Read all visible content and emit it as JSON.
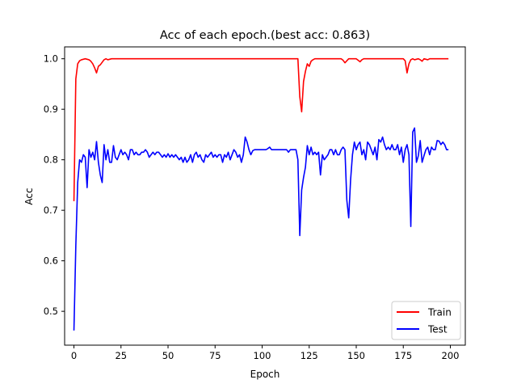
{
  "chart_data": {
    "type": "line",
    "title": "Acc of each epoch.(best acc: 0.863)",
    "xlabel": "Epoch",
    "ylabel": "Acc",
    "xlim": [
      -4.95,
      207.95
    ],
    "ylim": [
      0.433,
      1.0235
    ],
    "xticks": [
      0,
      25,
      50,
      75,
      100,
      125,
      150,
      175,
      200
    ],
    "yticks": [
      0.5,
      0.6,
      0.7,
      0.8,
      0.9,
      1.0
    ],
    "ytick_labels": [
      "0.5",
      "0.6",
      "0.7",
      "0.8",
      "0.9",
      "1.0"
    ],
    "grid": false,
    "legend_position": "lower-right",
    "series": [
      {
        "name": "Train",
        "color": "#ff0000",
        "x": [
          0,
          1,
          2,
          3,
          4,
          5,
          6,
          7,
          8,
          9,
          10,
          11,
          12,
          13,
          14,
          15,
          16,
          17,
          18,
          19,
          20,
          25,
          50,
          75,
          100,
          110,
          118,
          119,
          120,
          121,
          122,
          123,
          124,
          125,
          126,
          127,
          128,
          130,
          135,
          140,
          141,
          142,
          143,
          144,
          145,
          146,
          147,
          148,
          149,
          150,
          151,
          152,
          153,
          154,
          155,
          160,
          165,
          170,
          171,
          172,
          173,
          174,
          175,
          176,
          177,
          178,
          179,
          180,
          181,
          182,
          183,
          184,
          185,
          186,
          187,
          188,
          189,
          190,
          191,
          192,
          193,
          194,
          195,
          196,
          197,
          198,
          199
        ],
        "values": [
          0.718,
          0.96,
          0.99,
          0.996,
          0.998,
          0.999,
          1.0,
          0.999,
          0.998,
          0.995,
          0.99,
          0.982,
          0.972,
          0.985,
          0.988,
          0.993,
          0.998,
          1.0,
          0.998,
          0.999,
          1.0,
          1.0,
          1.0,
          1.0,
          1.0,
          1.0,
          1.0,
          1.0,
          0.925,
          0.895,
          0.955,
          0.975,
          0.99,
          0.985,
          0.995,
          0.998,
          1.0,
          1.0,
          1.0,
          1.0,
          1.0,
          1.0,
          0.997,
          0.992,
          0.996,
          1.0,
          1.0,
          1.0,
          1.0,
          1.0,
          0.997,
          0.994,
          0.998,
          1.0,
          1.0,
          1.0,
          1.0,
          1.0,
          1.0,
          1.0,
          1.0,
          1.0,
          1.0,
          0.996,
          0.972,
          0.99,
          0.998,
          1.0,
          0.998,
          0.999,
          1.0,
          0.998,
          0.995,
          1.0,
          0.999,
          0.998,
          1.0,
          1.0,
          1.0,
          1.0,
          1.0,
          1.0,
          1.0,
          1.0,
          1.0,
          1.0,
          1.0
        ]
      },
      {
        "name": "Test",
        "color": "#0000ff",
        "x": [
          0,
          1,
          2,
          3,
          4,
          5,
          6,
          7,
          8,
          9,
          10,
          11,
          12,
          13,
          14,
          15,
          16,
          17,
          18,
          19,
          20,
          21,
          22,
          23,
          24,
          25,
          26,
          27,
          28,
          29,
          30,
          31,
          32,
          33,
          34,
          35,
          36,
          37,
          38,
          39,
          40,
          41,
          42,
          43,
          44,
          45,
          46,
          47,
          48,
          49,
          50,
          51,
          52,
          53,
          54,
          55,
          56,
          57,
          58,
          59,
          60,
          61,
          62,
          63,
          64,
          65,
          66,
          67,
          68,
          69,
          70,
          71,
          72,
          73,
          74,
          75,
          76,
          77,
          78,
          79,
          80,
          81,
          82,
          83,
          84,
          85,
          86,
          87,
          88,
          89,
          90,
          91,
          92,
          93,
          94,
          95,
          96,
          97,
          98,
          99,
          100,
          101,
          102,
          103,
          104,
          105,
          106,
          107,
          108,
          109,
          110,
          111,
          112,
          113,
          114,
          115,
          116,
          117,
          118,
          119,
          120,
          121,
          122,
          123,
          124,
          125,
          126,
          127,
          128,
          129,
          130,
          131,
          132,
          133,
          134,
          135,
          136,
          137,
          138,
          139,
          140,
          141,
          142,
          143,
          144,
          145,
          146,
          147,
          148,
          149,
          150,
          151,
          152,
          153,
          154,
          155,
          156,
          157,
          158,
          159,
          160,
          161,
          162,
          163,
          164,
          165,
          166,
          167,
          168,
          169,
          170,
          171,
          172,
          173,
          174,
          175,
          176,
          177,
          178,
          179,
          180,
          181,
          182,
          183,
          184,
          185,
          186,
          187,
          188,
          189,
          190,
          191,
          192,
          193,
          194,
          195,
          196,
          197,
          198,
          199
        ],
        "values": [
          0.462,
          0.63,
          0.755,
          0.8,
          0.795,
          0.81,
          0.805,
          0.745,
          0.82,
          0.805,
          0.815,
          0.8,
          0.836,
          0.795,
          0.77,
          0.755,
          0.83,
          0.8,
          0.82,
          0.795,
          0.795,
          0.828,
          0.805,
          0.8,
          0.81,
          0.82,
          0.81,
          0.815,
          0.81,
          0.8,
          0.82,
          0.82,
          0.81,
          0.815,
          0.81,
          0.81,
          0.815,
          0.815,
          0.82,
          0.815,
          0.805,
          0.81,
          0.815,
          0.81,
          0.815,
          0.815,
          0.81,
          0.805,
          0.81,
          0.805,
          0.812,
          0.805,
          0.81,
          0.805,
          0.81,
          0.805,
          0.8,
          0.805,
          0.795,
          0.805,
          0.795,
          0.8,
          0.81,
          0.795,
          0.81,
          0.815,
          0.805,
          0.81,
          0.8,
          0.795,
          0.81,
          0.805,
          0.81,
          0.815,
          0.805,
          0.81,
          0.805,
          0.81,
          0.81,
          0.795,
          0.81,
          0.805,
          0.815,
          0.8,
          0.81,
          0.82,
          0.815,
          0.805,
          0.81,
          0.795,
          0.81,
          0.845,
          0.835,
          0.82,
          0.81,
          0.818,
          0.82,
          0.82,
          0.82,
          0.82,
          0.82,
          0.82,
          0.82,
          0.822,
          0.825,
          0.82,
          0.82,
          0.82,
          0.82,
          0.82,
          0.82,
          0.82,
          0.82,
          0.82,
          0.815,
          0.82,
          0.82,
          0.82,
          0.82,
          0.8,
          0.65,
          0.74,
          0.765,
          0.785,
          0.828,
          0.81,
          0.825,
          0.81,
          0.815,
          0.81,
          0.815,
          0.77,
          0.81,
          0.8,
          0.805,
          0.81,
          0.82,
          0.82,
          0.81,
          0.82,
          0.81,
          0.81,
          0.82,
          0.825,
          0.82,
          0.72,
          0.685,
          0.76,
          0.81,
          0.835,
          0.82,
          0.83,
          0.835,
          0.81,
          0.82,
          0.8,
          0.835,
          0.83,
          0.82,
          0.81,
          0.825,
          0.8,
          0.84,
          0.835,
          0.845,
          0.83,
          0.82,
          0.825,
          0.82,
          0.83,
          0.82,
          0.82,
          0.83,
          0.81,
          0.825,
          0.795,
          0.82,
          0.83,
          0.81,
          0.668,
          0.855,
          0.863,
          0.795,
          0.808,
          0.838,
          0.795,
          0.808,
          0.82,
          0.825,
          0.81,
          0.825,
          0.82,
          0.82,
          0.838,
          0.837,
          0.83,
          0.835,
          0.83,
          0.82,
          0.82
        ]
      }
    ]
  }
}
